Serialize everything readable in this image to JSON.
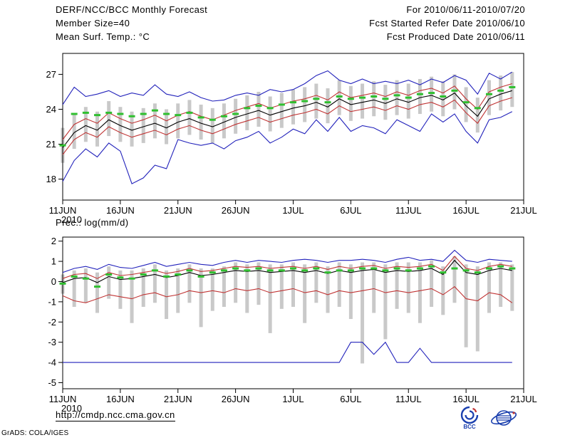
{
  "header": {
    "title": "DERF/NCC/BCC Monthly Forecast",
    "member_size": "Member Size=40",
    "temp_label": "Mean Surf. Temp.: °C",
    "for_range": "For 2010/06/11-2010/07/20",
    "fcst_started": "Fcst Started Refer Date 2010/06/10",
    "fcst_produced": "Fcst Produced Date 2010/06/11"
  },
  "footer": {
    "url": "http://cmdp.ncc.cma.gov.cn",
    "credit": "GrADS: COLA/IGES",
    "logo_bcc": "BCC"
  },
  "colors": {
    "blue": "#2222bb",
    "red": "#c03434",
    "black": "#000000",
    "green": "#2fbf2f",
    "bar": "#c9c9c9"
  },
  "chart_data": [
    {
      "type": "line",
      "name": "temperature",
      "title": "Mean Surf. Temp.: °C",
      "xlabel": "",
      "ylabel": "°C",
      "x_tick_labels": [
        "11JUN",
        "16JUN",
        "21JUN",
        "26JUN",
        "1JUL",
        "6JUL",
        "11JUL",
        "16JUL",
        "21JUL"
      ],
      "x_tick_days": [
        0,
        5,
        10,
        15,
        20,
        25,
        30,
        35,
        40
      ],
      "x_sub_label": "2010",
      "xlim": [
        0,
        40
      ],
      "ylim": [
        16.2,
        28.8
      ],
      "y_ticks": [
        27,
        24,
        21,
        18
      ],
      "grid": false,
      "legend": "none",
      "series": [
        {
          "name": "ensemble-max",
          "color": "blue",
          "values": [
            24.4,
            25.9,
            25.1,
            25.3,
            25.6,
            25.1,
            25.4,
            25.2,
            26.1,
            25.3,
            25.1,
            25.5,
            25.0,
            24.7,
            24.8,
            25.2,
            25.4,
            25.2,
            25.7,
            25.5,
            25.7,
            26.2,
            26.9,
            27.3,
            26.5,
            26.2,
            26.6,
            26.2,
            26.4,
            26.2,
            26.5,
            26.1,
            26.6,
            26.3,
            26.9,
            26.5,
            25.3,
            27.1,
            26.6,
            27.2
          ]
        },
        {
          "name": "upper-quartile",
          "color": "red",
          "values": [
            21.4,
            22.7,
            23.2,
            22.8,
            23.7,
            23.2,
            22.8,
            23.1,
            23.5,
            23.0,
            23.5,
            23.8,
            23.4,
            23.1,
            23.5,
            23.9,
            24.2,
            24.5,
            24.1,
            24.4,
            24.7,
            24.9,
            25.2,
            24.8,
            25.5,
            25.0,
            25.2,
            25.4,
            25.1,
            25.5,
            25.2,
            25.6,
            25.8,
            25.4,
            26.0,
            24.9,
            24.0,
            25.5,
            25.9,
            26.2
          ]
        },
        {
          "name": "ensemble-mean",
          "color": "black",
          "values": [
            20.7,
            22.0,
            22.6,
            22.2,
            23.1,
            22.6,
            22.2,
            22.5,
            22.8,
            22.4,
            22.9,
            23.2,
            22.8,
            22.5,
            22.9,
            23.3,
            23.6,
            23.9,
            23.5,
            23.8,
            24.1,
            24.3,
            24.6,
            24.2,
            24.9,
            24.4,
            24.6,
            24.8,
            24.5,
            24.9,
            24.6,
            25.0,
            25.2,
            24.8,
            25.4,
            24.3,
            23.4,
            24.9,
            25.3,
            25.6
          ]
        },
        {
          "name": "lower-quartile",
          "color": "red",
          "values": [
            20.1,
            21.4,
            22.0,
            21.6,
            22.5,
            22.0,
            21.6,
            21.9,
            22.2,
            21.8,
            22.3,
            22.6,
            22.2,
            21.9,
            22.3,
            22.7,
            23.0,
            23.3,
            22.9,
            23.2,
            23.5,
            23.7,
            24.0,
            23.6,
            24.3,
            23.8,
            24.0,
            24.2,
            23.9,
            24.3,
            24.0,
            24.4,
            24.6,
            24.2,
            24.8,
            23.7,
            22.8,
            24.3,
            24.7,
            25.0
          ]
        },
        {
          "name": "ensemble-min",
          "color": "blue",
          "values": [
            17.8,
            19.6,
            20.6,
            19.9,
            21.1,
            20.4,
            17.6,
            18.1,
            19.2,
            18.9,
            21.4,
            21.1,
            20.9,
            21.1,
            20.6,
            21.3,
            21.6,
            22.1,
            21.1,
            21.6,
            22.3,
            21.9,
            23.1,
            22.1,
            23.3,
            22.1,
            22.6,
            22.4,
            21.9,
            23.1,
            22.6,
            22.1,
            23.6,
            22.9,
            23.6,
            22.1,
            21.1,
            23.1,
            23.3,
            23.8
          ]
        }
      ],
      "dashes": {
        "name": "green-marker",
        "color": "green",
        "values": [
          20.9,
          23.6,
          23.7,
          23.5,
          23.7,
          23.6,
          23.4,
          23.6,
          23.9,
          23.6,
          23.5,
          23.7,
          23.3,
          23.1,
          23.4,
          23.6,
          24.1,
          24.3,
          24.1,
          24.4,
          24.6,
          24.7,
          24.9,
          24.6,
          25.1,
          24.9,
          25.0,
          25.1,
          24.9,
          25.2,
          25.0,
          25.3,
          25.4,
          25.1,
          25.6,
          24.6,
          24.1,
          25.3,
          25.6,
          25.9
        ]
      },
      "bars": {
        "high": [
          22.4,
          23.6,
          24.2,
          23.8,
          24.7,
          24.2,
          23.8,
          24.1,
          24.5,
          24.0,
          24.5,
          24.8,
          24.4,
          24.1,
          24.5,
          24.9,
          25.2,
          25.5,
          25.1,
          25.4,
          25.7,
          25.9,
          26.2,
          25.8,
          26.5,
          26.0,
          26.2,
          26.4,
          26.1,
          26.5,
          26.2,
          26.6,
          26.8,
          26.4,
          27.0,
          25.9,
          25.0,
          26.5,
          26.9,
          27.2
        ],
        "low": [
          19.4,
          20.6,
          21.2,
          20.8,
          21.7,
          21.2,
          20.8,
          21.1,
          21.5,
          21.0,
          21.5,
          21.8,
          21.4,
          21.1,
          21.5,
          21.9,
          22.2,
          22.5,
          22.1,
          22.4,
          22.7,
          22.9,
          23.2,
          22.8,
          23.5,
          23.0,
          23.2,
          23.4,
          23.1,
          23.5,
          23.2,
          23.6,
          23.8,
          23.4,
          24.0,
          22.9,
          22.0,
          23.5,
          23.9,
          24.2
        ]
      }
    },
    {
      "type": "line",
      "name": "precipitation",
      "title": "Prec.: log(mm/d)",
      "xlabel": "",
      "ylabel": "log(mm/d)",
      "x_tick_labels": [
        "11JUN",
        "16JUN",
        "21JUN",
        "26JUN",
        "1JUL",
        "6JUL",
        "11JUL",
        "16JUL",
        "21JUL"
      ],
      "x_tick_days": [
        0,
        5,
        10,
        15,
        20,
        25,
        30,
        35,
        40
      ],
      "x_sub_label": "2010",
      "xlim": [
        0,
        40
      ],
      "ylim": [
        -5.3,
        2.2
      ],
      "y_ticks": [
        2,
        1,
        0,
        -1,
        -2,
        -3,
        -4,
        -5
      ],
      "grid": false,
      "legend": "none",
      "series": [
        {
          "name": "ensemble-max",
          "color": "blue",
          "values": [
            0.45,
            0.65,
            0.75,
            0.6,
            0.85,
            0.7,
            0.65,
            0.8,
            0.95,
            0.75,
            0.85,
            0.95,
            0.85,
            0.8,
            0.95,
            1.05,
            0.95,
            1.05,
            1.0,
            0.95,
            1.05,
            1.1,
            1.05,
            0.95,
            1.05,
            1.05,
            1.1,
            1.05,
            0.95,
            1.1,
            1.2,
            1.05,
            1.1,
            1.0,
            1.55,
            1.05,
            0.95,
            1.1,
            1.05,
            1.0
          ]
        },
        {
          "name": "upper-quartile",
          "color": "red",
          "values": [
            0.15,
            0.35,
            0.4,
            0.15,
            0.45,
            0.3,
            0.35,
            0.45,
            0.55,
            0.4,
            0.5,
            0.65,
            0.5,
            0.55,
            0.65,
            0.75,
            0.7,
            0.75,
            0.65,
            0.7,
            0.75,
            0.65,
            0.75,
            0.6,
            0.75,
            0.65,
            0.75,
            0.8,
            0.65,
            0.75,
            0.7,
            0.75,
            0.85,
            0.55,
            1.25,
            0.65,
            0.55,
            0.75,
            0.85,
            0.75
          ]
        },
        {
          "name": "ensemble-mean",
          "color": "black",
          "values": [
            -0.05,
            0.15,
            0.2,
            -0.05,
            0.25,
            0.1,
            0.15,
            0.25,
            0.35,
            0.2,
            0.3,
            0.45,
            0.3,
            0.35,
            0.45,
            0.55,
            0.5,
            0.55,
            0.45,
            0.5,
            0.55,
            0.45,
            0.55,
            0.4,
            0.55,
            0.45,
            0.55,
            0.6,
            0.45,
            0.55,
            0.5,
            0.55,
            0.65,
            0.35,
            1.05,
            0.45,
            0.35,
            0.55,
            0.65,
            0.55
          ]
        },
        {
          "name": "lower-quartile",
          "color": "red",
          "values": [
            -0.7,
            -0.95,
            -1.05,
            -0.85,
            -0.65,
            -0.75,
            -0.85,
            -0.65,
            -0.55,
            -0.75,
            -0.65,
            -0.45,
            -0.55,
            -0.45,
            -0.55,
            -0.35,
            -0.45,
            -0.35,
            -0.55,
            -0.45,
            -0.35,
            -0.55,
            -0.45,
            -0.65,
            -0.45,
            -0.55,
            -0.45,
            -0.35,
            -0.55,
            -0.45,
            -0.55,
            -0.45,
            -0.35,
            -0.65,
            -0.25,
            -0.85,
            -0.95,
            -0.55,
            -0.65,
            -1.05
          ]
        },
        {
          "name": "ensemble-min",
          "color": "blue",
          "values": [
            -4,
            -4,
            -4,
            -4,
            -4,
            -4,
            -4,
            -4,
            -4,
            -4,
            -4,
            -4,
            -4,
            -4,
            -4,
            -4,
            -4,
            -4,
            -4,
            -4,
            -4,
            -4,
            -4,
            -4,
            -4,
            -3.0,
            -3.0,
            -3.6,
            -3.0,
            -4,
            -4,
            -3.3,
            -4,
            -4,
            -4,
            -4,
            -4,
            -4,
            -4,
            -4
          ]
        }
      ],
      "dashes": {
        "name": "green-marker",
        "color": "green",
        "values": [
          -0.1,
          0.25,
          0.15,
          -0.25,
          0.35,
          0.2,
          0.15,
          0.35,
          0.55,
          0.25,
          0.35,
          0.55,
          0.25,
          0.45,
          0.55,
          0.65,
          0.55,
          0.65,
          0.55,
          0.55,
          0.65,
          0.55,
          0.65,
          0.45,
          0.55,
          0.55,
          0.65,
          0.65,
          0.55,
          0.65,
          0.55,
          0.65,
          0.75,
          0.45,
          0.65,
          0.55,
          0.45,
          0.65,
          0.75,
          0.65
        ]
      },
      "bars": {
        "high": [
          0.35,
          0.55,
          0.65,
          0.45,
          0.75,
          0.55,
          0.55,
          0.65,
          0.85,
          0.55,
          0.65,
          0.85,
          0.65,
          0.65,
          0.75,
          0.95,
          0.85,
          0.95,
          0.85,
          0.85,
          0.95,
          0.85,
          0.95,
          0.75,
          0.95,
          0.85,
          0.95,
          0.95,
          0.85,
          0.95,
          0.95,
          0.95,
          1.05,
          0.75,
          1.25,
          0.85,
          0.75,
          0.95,
          0.95,
          0.85
        ],
        "low": [
          -0.6,
          -1.25,
          -1.05,
          -1.55,
          -0.85,
          -1.35,
          -2.05,
          -1.25,
          -1.05,
          -1.85,
          -1.55,
          -1.05,
          -2.25,
          -1.45,
          -1.25,
          -1.05,
          -1.55,
          -1.15,
          -2.55,
          -1.35,
          -1.25,
          -2.05,
          -1.05,
          -1.55,
          -1.25,
          -1.85,
          -4.05,
          -1.55,
          -2.85,
          -1.35,
          -1.55,
          -2.05,
          -1.25,
          -1.65,
          -1.05,
          -3.25,
          -3.45,
          -1.55,
          -1.25,
          -1.45
        ]
      }
    }
  ]
}
